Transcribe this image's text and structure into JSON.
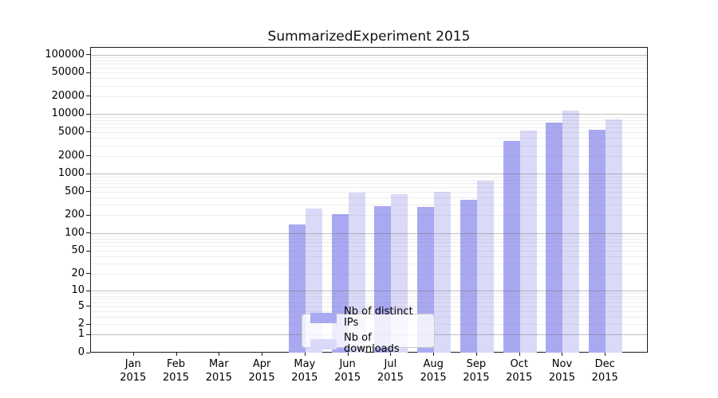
{
  "title": "SummarizedExperiment 2015",
  "chart_data": {
    "type": "bar",
    "title": "SummarizedExperiment 2015",
    "categories": [
      "Jan",
      "Feb",
      "Mar",
      "Apr",
      "May",
      "Jun",
      "Jul",
      "Aug",
      "Sep",
      "Oct",
      "Nov",
      "Dec"
    ],
    "year": "2015",
    "series": [
      {
        "name": "Nb of distinct IPs",
        "color": "#a9a9f2",
        "values": [
          0,
          0,
          0,
          0,
          146,
          215,
          290,
          285,
          376,
          3700,
          7350,
          5700
        ]
      },
      {
        "name": "Nb of downloads",
        "color": "#dadaf8",
        "values": [
          0,
          0,
          0,
          0,
          268,
          495,
          468,
          510,
          790,
          5500,
          11700,
          8400
        ]
      }
    ],
    "yscale": "log10(1+v)",
    "yticks": [
      0,
      1,
      2,
      5,
      10,
      20,
      50,
      100,
      200,
      500,
      1000,
      2000,
      5000,
      10000,
      20000,
      50000,
      100000
    ],
    "ylim": [
      0,
      134000
    ],
    "grid": {
      "major_at": "powers of 10",
      "major_color": "#b9b9b9",
      "minor_color": "#ededed"
    },
    "legend_position": "lower center",
    "axis_color": "#1a1a1a",
    "background": "#ffffff"
  }
}
